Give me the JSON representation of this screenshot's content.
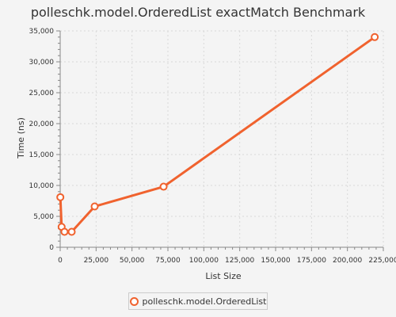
{
  "colors": {
    "series": "#f0622e",
    "background": "#f4f4f4",
    "grid": "#d9d9d9",
    "text": "#333333"
  },
  "chart_data": {
    "type": "line",
    "title": "polleschk.model.OrderedList exactMatch Benchmark",
    "xlabel": "List Size",
    "ylabel": "Time (ns)",
    "xlim": [
      0,
      225000
    ],
    "ylim": [
      0,
      35000
    ],
    "xticks": [
      0,
      25000,
      50000,
      75000,
      100000,
      125000,
      150000,
      175000,
      200000,
      225000
    ],
    "xtick_labels": [
      "0",
      "25,000",
      "50,000",
      "75,000",
      "100,000",
      "125,000",
      "150,000",
      "175,000",
      "200,000",
      "225,000"
    ],
    "yticks": [
      0,
      5000,
      10000,
      15000,
      20000,
      25000,
      30000,
      35000
    ],
    "ytick_labels": [
      "0",
      "5,000",
      "10,000",
      "15,000",
      "20,000",
      "25,000",
      "30,000",
      "35,000"
    ],
    "grid": true,
    "legend_position": "bottom-center",
    "series": [
      {
        "name": "polleschk.model.OrderedList",
        "x": [
          100,
          1000,
          3000,
          8000,
          24000,
          72000,
          219000
        ],
        "y": [
          8100,
          3300,
          2500,
          2500,
          6600,
          9800,
          34000
        ]
      }
    ]
  }
}
